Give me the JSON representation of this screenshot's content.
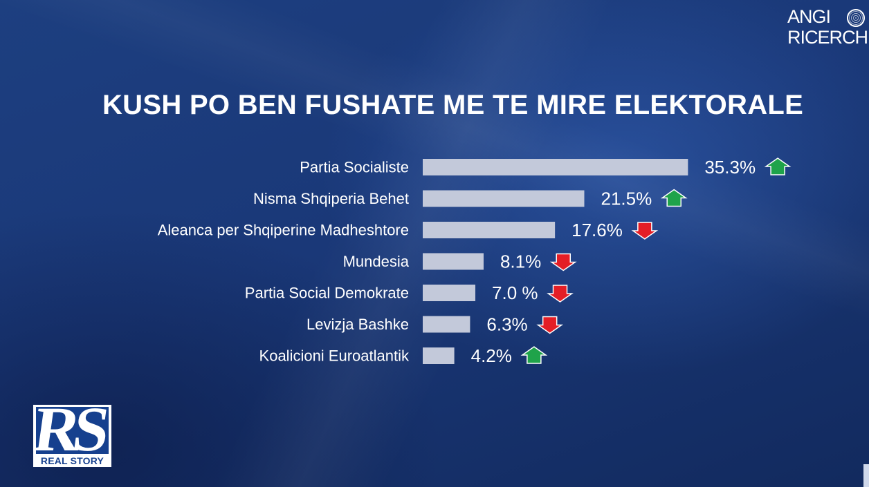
{
  "brand": {
    "line1": "ANGI",
    "line2": "RICERCHE"
  },
  "chart_data": {
    "type": "bar",
    "orientation": "horizontal",
    "title": "KUSH PO BEN FUSHATE ME TE MIRE ELEKTORALE",
    "xlabel": "",
    "ylabel": "",
    "grid": false,
    "categories": [
      "Partia Socialiste",
      "Nisma Shqiperia Behet",
      "Aleanca per Shqiperine Madheshtore",
      "Mundesia",
      "Partia Social Demokrate",
      "Levizja Bashke",
      "Koalicioni Euroatlantik"
    ],
    "values": [
      35.3,
      21.5,
      17.6,
      8.1,
      7.0,
      6.3,
      4.2
    ],
    "value_labels": [
      "35.3%",
      "21.5%",
      "17.6%",
      "8.1%",
      "7.0 %",
      "6.3%",
      "4.2%"
    ],
    "trend": [
      "up",
      "up",
      "down",
      "down",
      "down",
      "down",
      "up"
    ],
    "colors": {
      "bar": "#c3c9da",
      "up": "#1fa34a",
      "down": "#e41e26",
      "text": "#ffffff"
    }
  },
  "logo": {
    "mark": "RS",
    "caption": "REAL STORY"
  }
}
